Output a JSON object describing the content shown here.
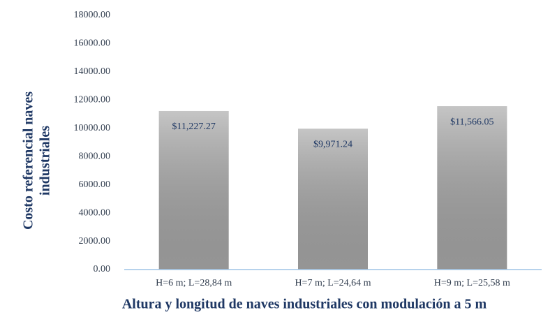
{
  "chart_data": {
    "type": "bar",
    "x_label": "Altura y longitud de naves industriales  con modulación a 5 m",
    "y_label": [
      "Costo referencial naves",
      "industriales"
    ],
    "categories": [
      "H=6 m; L=28,84 m",
      "H=7 m; L=24,64 m",
      "H=9 m; L=25,58 m"
    ],
    "values": [
      11227.27,
      9971.24,
      11566.05
    ],
    "value_labels": [
      "$11,227.27",
      "$9,971.24",
      "$11,566.05"
    ],
    "color": "#a6a6a6",
    "ylim": [
      0,
      18000
    ],
    "yticks": [
      {
        "value": 0,
        "label": "0.00"
      },
      {
        "value": 2000,
        "label": "2000.00"
      },
      {
        "value": 4000,
        "label": "4000.00"
      },
      {
        "value": 6000,
        "label": "6000.00"
      },
      {
        "value": 8000,
        "label": "8000.00"
      },
      {
        "value": 10000,
        "label": "10000.00"
      },
      {
        "value": 12000,
        "label": "12000.00"
      },
      {
        "value": 14000,
        "label": "14000.00"
      },
      {
        "value": 16000,
        "label": "16000.00"
      },
      {
        "value": 18000,
        "label": "18000.00"
      }
    ],
    "grid": false
  }
}
